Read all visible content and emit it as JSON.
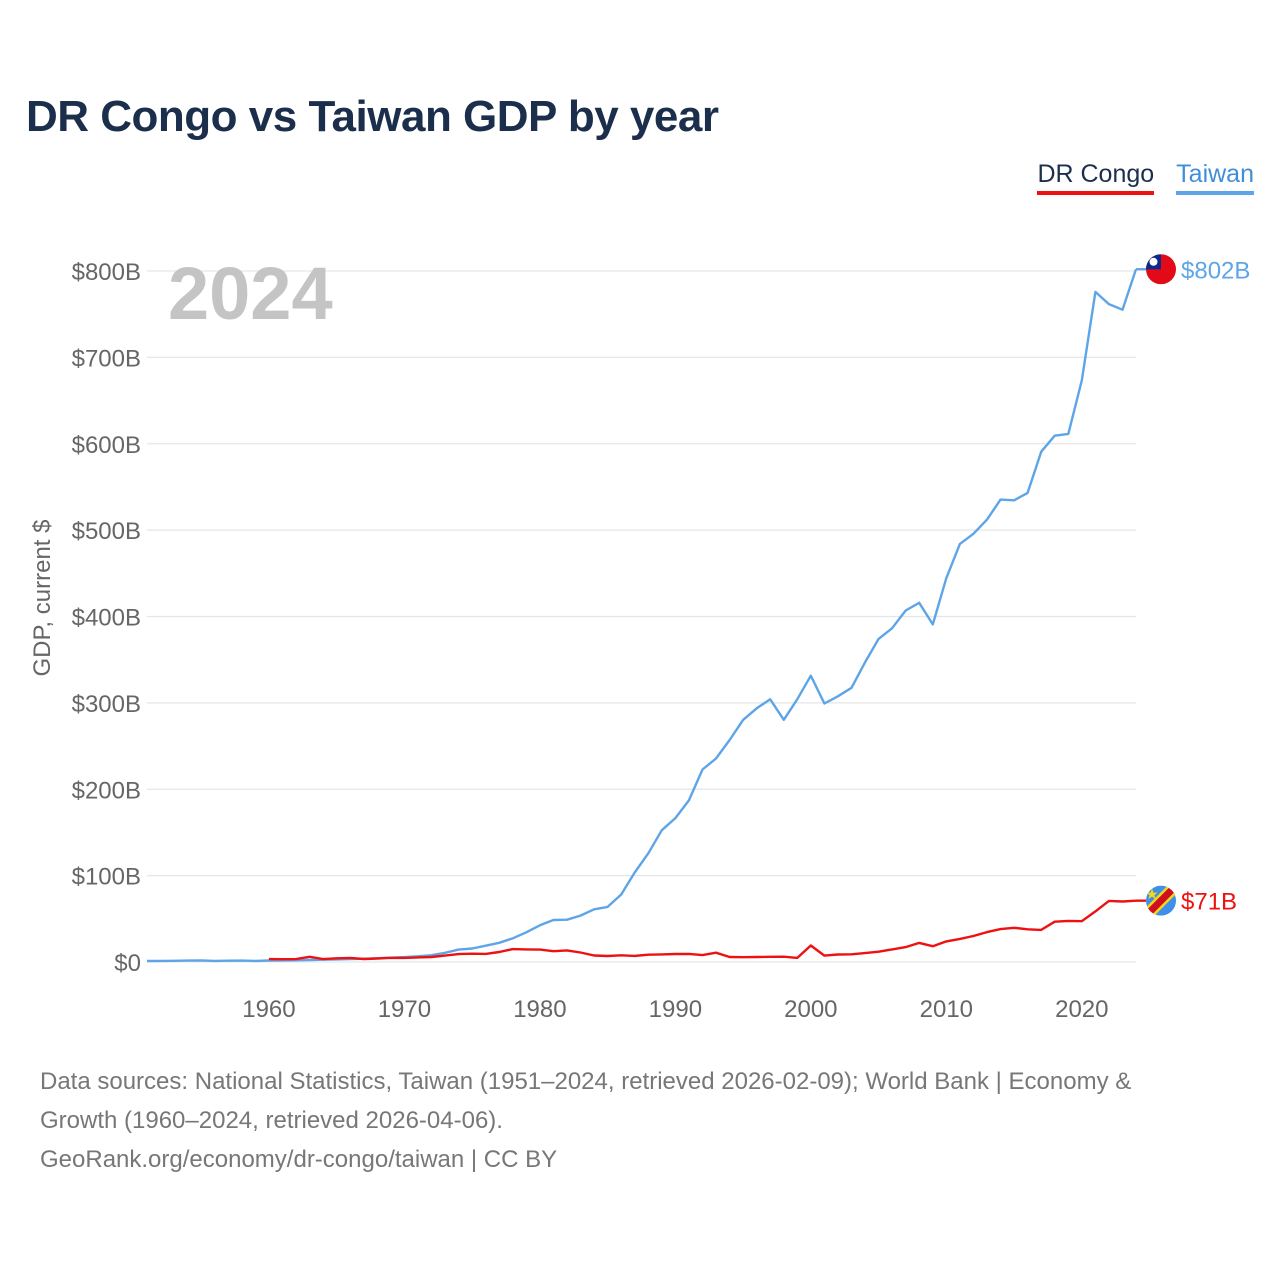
{
  "title": "DR Congo vs Taiwan GDP by year",
  "legend": {
    "congo": "DR Congo",
    "taiwan": "Taiwan"
  },
  "year_watermark": "2024",
  "footer": {
    "line1": "Data sources: National Statistics, Taiwan (1951–2024, retrieved 2026-02-09); World Bank | Economy &",
    "line2": "Growth (1960–2024, retrieved 2026-04-06).",
    "line3": "GeoRank.org/economy/dr-congo/taiwan | CC BY"
  },
  "colors": {
    "congo": "#ee1111",
    "taiwan": "#5ea5e8",
    "grid": "#e6e6e6",
    "axis_text": "#666666"
  },
  "chart_data": {
    "type": "line",
    "title": "DR Congo vs Taiwan GDP by year",
    "xlabel": "",
    "ylabel": "GDP, current $",
    "xlim": [
      1951,
      2024
    ],
    "ylim": [
      0,
      800
    ],
    "y_unit": "billion USD",
    "x_ticks": [
      1960,
      1970,
      1980,
      1990,
      2000,
      2010,
      2020
    ],
    "y_ticks": [
      0,
      100,
      200,
      300,
      400,
      500,
      600,
      700,
      800
    ],
    "y_tick_labels": [
      "$0",
      "$100B",
      "$200B",
      "$300B",
      "$400B",
      "$500B",
      "$600B",
      "$700B",
      "$800B"
    ],
    "series": [
      {
        "name": "Taiwan",
        "end_label": "$802B",
        "x": [
          1951,
          1952,
          1953,
          1954,
          1955,
          1956,
          1957,
          1958,
          1959,
          1960,
          1961,
          1962,
          1963,
          1964,
          1965,
          1966,
          1967,
          1968,
          1969,
          1970,
          1971,
          1972,
          1973,
          1974,
          1975,
          1976,
          1977,
          1978,
          1979,
          1980,
          1981,
          1982,
          1983,
          1984,
          1985,
          1986,
          1987,
          1988,
          1989,
          1990,
          1991,
          1992,
          1993,
          1994,
          1995,
          1996,
          1997,
          1998,
          1999,
          2000,
          2001,
          2002,
          2003,
          2004,
          2005,
          2006,
          2007,
          2008,
          2009,
          2010,
          2011,
          2012,
          2013,
          2014,
          2015,
          2016,
          2017,
          2018,
          2019,
          2020,
          2021,
          2022,
          2023,
          2024
        ],
        "values": [
          1.2,
          1.3,
          1.4,
          1.6,
          1.8,
          1.3,
          1.5,
          1.6,
          1.3,
          1.7,
          1.8,
          2.0,
          2.3,
          2.7,
          3.0,
          3.3,
          3.8,
          4.3,
          5.0,
          5.7,
          6.6,
          7.9,
          10.7,
          14.4,
          15.6,
          18.9,
          22.2,
          27.4,
          34.4,
          42.5,
          48.6,
          49.0,
          53.7,
          61.0,
          63.8,
          78.2,
          103.6,
          125.8,
          152.6,
          166.6,
          187.1,
          222.9,
          235.6,
          257.0,
          280.3,
          293.7,
          304.1,
          280.4,
          304.2,
          331.5,
          299.3,
          307.6,
          317.4,
          346.9,
          374.1,
          386.5,
          406.9,
          415.9,
          390.8,
          444.3,
          484.0,
          495.8,
          512.2,
          535.3,
          534.5,
          543.1,
          590.8,
          609.3,
          611.4,
          673.2,
          775.8,
          761.7,
          755.2,
          802.0
        ]
      },
      {
        "name": "DR Congo",
        "end_label": "$71B",
        "x": [
          1960,
          1961,
          1962,
          1963,
          1964,
          1965,
          1966,
          1967,
          1968,
          1969,
          1970,
          1971,
          1972,
          1973,
          1974,
          1975,
          1976,
          1977,
          1978,
          1979,
          1980,
          1981,
          1982,
          1983,
          1984,
          1985,
          1986,
          1987,
          1988,
          1989,
          1990,
          1991,
          1992,
          1993,
          1994,
          1995,
          1996,
          1997,
          1998,
          1999,
          2000,
          2001,
          2002,
          2003,
          2004,
          2005,
          2006,
          2007,
          2008,
          2009,
          2010,
          2011,
          2012,
          2013,
          2014,
          2015,
          2016,
          2017,
          2018,
          2019,
          2020,
          2021,
          2022,
          2023,
          2024
        ],
        "values": [
          3.4,
          3.2,
          3.3,
          6.0,
          3.4,
          4.3,
          4.7,
          3.5,
          4.0,
          4.9,
          4.8,
          5.3,
          5.8,
          7.4,
          9.1,
          9.6,
          9.4,
          11.6,
          14.9,
          14.6,
          14.4,
          12.5,
          13.4,
          11.0,
          7.5,
          6.9,
          7.8,
          7.1,
          8.5,
          8.8,
          9.3,
          9.4,
          8.0,
          10.8,
          5.8,
          5.6,
          5.8,
          6.0,
          6.1,
          4.7,
          19.1,
          7.4,
          8.7,
          8.9,
          10.3,
          11.9,
          14.6,
          17.3,
          22.1,
          18.3,
          23.8,
          26.8,
          30.1,
          34.6,
          38.1,
          39.6,
          37.9,
          37.2,
          46.7,
          47.6,
          47.2,
          58.6,
          70.7,
          70.0,
          71.0
        ]
      }
    ]
  }
}
